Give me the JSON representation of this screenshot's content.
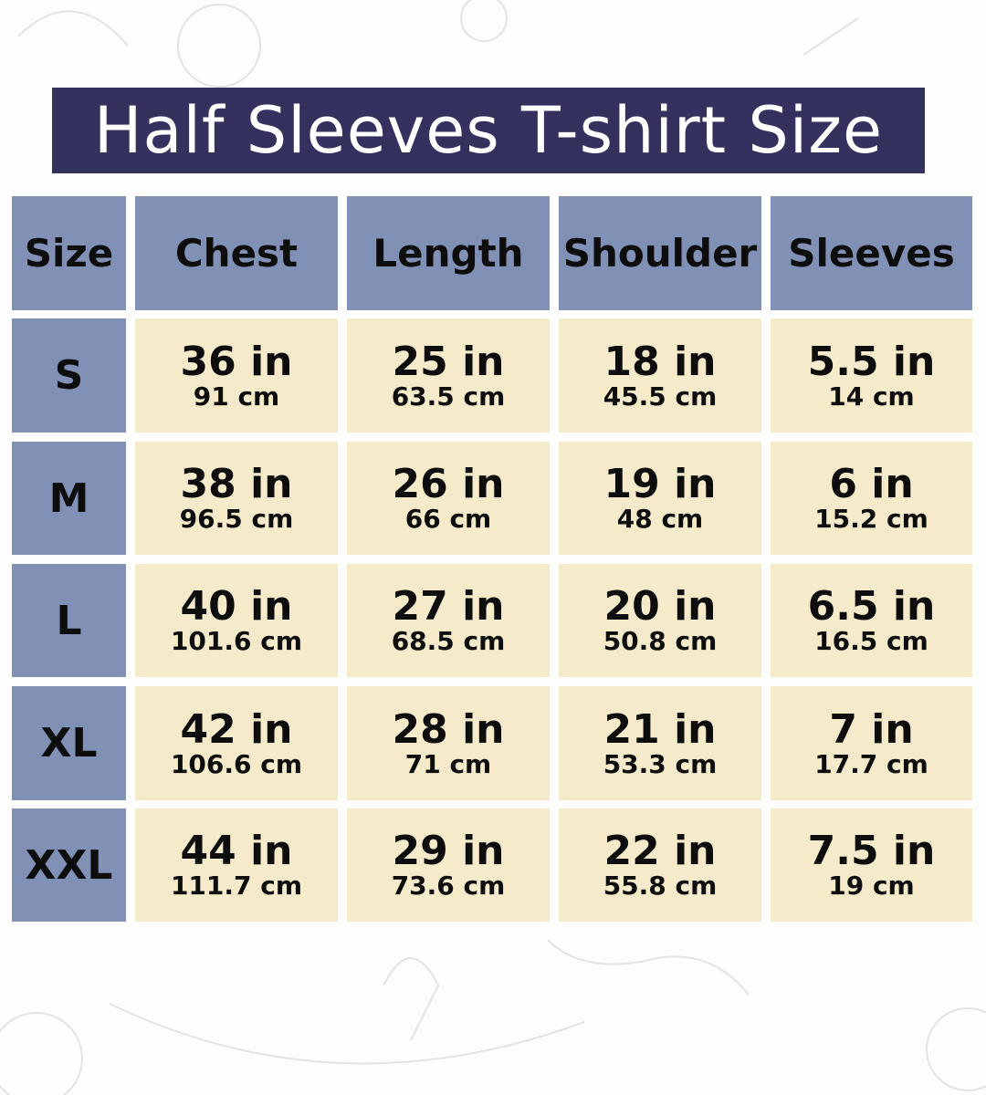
{
  "title": "Half Sleeves T-shirt Size",
  "colors": {
    "title_bg": "#34315f",
    "header_bg": "#8190b5",
    "cell_bg": "#f5eaca"
  },
  "headers": [
    "Size",
    "Chest",
    "Length",
    "Shoulder",
    "Sleeves"
  ],
  "rows": [
    {
      "size": "S",
      "values": [
        {
          "in": "36 in",
          "cm": "91 cm"
        },
        {
          "in": "25 in",
          "cm": "63.5 cm"
        },
        {
          "in": "18 in",
          "cm": "45.5 cm"
        },
        {
          "in": "5.5 in",
          "cm": "14 cm"
        }
      ]
    },
    {
      "size": "M",
      "values": [
        {
          "in": "38 in",
          "cm": "96.5 cm"
        },
        {
          "in": "26 in",
          "cm": "66 cm"
        },
        {
          "in": "19 in",
          "cm": "48 cm"
        },
        {
          "in": "6 in",
          "cm": "15.2 cm"
        }
      ]
    },
    {
      "size": "L",
      "values": [
        {
          "in": "40 in",
          "cm": "101.6 cm"
        },
        {
          "in": "27 in",
          "cm": "68.5 cm"
        },
        {
          "in": "20 in",
          "cm": "50.8 cm"
        },
        {
          "in": "6.5 in",
          "cm": "16.5 cm"
        }
      ]
    },
    {
      "size": "XL",
      "values": [
        {
          "in": "42 in",
          "cm": "106.6 cm"
        },
        {
          "in": "28 in",
          "cm": "71 cm"
        },
        {
          "in": "21 in",
          "cm": "53.3 cm"
        },
        {
          "in": "7 in",
          "cm": "17.7 cm"
        }
      ]
    },
    {
      "size": "XXL",
      "values": [
        {
          "in": "44 in",
          "cm": "111.7 cm"
        },
        {
          "in": "29 in",
          "cm": "73.6 cm"
        },
        {
          "in": "22 in",
          "cm": "55.8 cm"
        },
        {
          "in": "7.5 in",
          "cm": "19 cm"
        }
      ]
    }
  ]
}
